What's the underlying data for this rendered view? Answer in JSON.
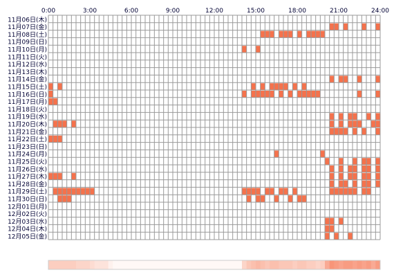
{
  "chart_data": {
    "type": "heatmap",
    "title": "",
    "x_ticks": [
      "0:00",
      "3:00",
      "6:00",
      "9:00",
      "12:00",
      "15:00",
      "18:00",
      "21:00",
      "24:00"
    ],
    "x_range_hours": [
      0,
      24
    ],
    "grid": true,
    "cell_minutes": 20,
    "active_color": "#f5724c",
    "grid_color": "#999999",
    "rows": [
      {
        "date": "11月06日(木)",
        "active": []
      },
      {
        "date": "11月07日(金)",
        "active": [
          [
            20.33,
            21.0
          ],
          [
            21.33,
            21.67
          ],
          [
            22.67,
            23.0
          ],
          [
            23.67,
            24.0
          ]
        ]
      },
      {
        "date": "11月08日(土)",
        "active": [
          [
            15.33,
            16.33
          ],
          [
            16.67,
            17.67
          ],
          [
            18.0,
            18.33
          ],
          [
            18.67,
            20.0
          ]
        ]
      },
      {
        "date": "11月09日(日)",
        "active": []
      },
      {
        "date": "11月10日(月)",
        "active": [
          [
            14.0,
            14.33
          ],
          [
            15.0,
            15.33
          ]
        ]
      },
      {
        "date": "11月11日(火)",
        "active": []
      },
      {
        "date": "11月12日(水)",
        "active": []
      },
      {
        "date": "11月13日(木)",
        "active": []
      },
      {
        "date": "11月14日(金)",
        "active": [
          [
            20.33,
            20.67
          ],
          [
            21.0,
            21.67
          ],
          [
            22.33,
            22.67
          ],
          [
            23.67,
            24.0
          ]
        ]
      },
      {
        "date": "11月15日(土)",
        "active": [
          [
            0.0,
            0.33
          ],
          [
            0.67,
            1.0
          ],
          [
            14.67,
            15.0
          ],
          [
            15.33,
            15.67
          ],
          [
            16.0,
            17.33
          ],
          [
            17.67,
            18.0
          ],
          [
            18.33,
            18.67
          ]
        ]
      },
      {
        "date": "11月16日(日)",
        "active": [
          [
            0.0,
            0.33
          ],
          [
            14.0,
            14.33
          ],
          [
            14.67,
            16.33
          ],
          [
            16.67,
            17.0
          ],
          [
            17.33,
            17.67
          ],
          [
            18.0,
            19.67
          ],
          [
            22.33,
            22.67
          ],
          [
            23.67,
            24.0
          ]
        ]
      },
      {
        "date": "11月17日(月)",
        "active": [
          [
            0.0,
            0.67
          ]
        ]
      },
      {
        "date": "11月18日(火)",
        "active": []
      },
      {
        "date": "11月19日(水)",
        "active": [
          [
            20.33,
            20.67
          ],
          [
            21.0,
            21.33
          ],
          [
            21.67,
            22.33
          ],
          [
            23.0,
            23.33
          ],
          [
            23.67,
            24.0
          ]
        ]
      },
      {
        "date": "11月20日(木)",
        "active": [
          [
            0.33,
            1.33
          ],
          [
            1.67,
            2.0
          ],
          [
            20.33,
            20.67
          ],
          [
            21.0,
            21.33
          ],
          [
            21.67,
            22.67
          ],
          [
            23.33,
            24.0
          ]
        ]
      },
      {
        "date": "11月21日(金)",
        "active": [
          [
            20.33,
            21.67
          ],
          [
            22.0,
            22.33
          ],
          [
            22.67,
            23.0
          ],
          [
            23.67,
            24.0
          ]
        ]
      },
      {
        "date": "11月22日(土)",
        "active": [
          [
            0.0,
            1.0
          ]
        ]
      },
      {
        "date": "11月23日(日)",
        "active": []
      },
      {
        "date": "11月24日(月)",
        "active": [
          [
            16.33,
            16.67
          ],
          [
            19.67,
            20.0
          ]
        ]
      },
      {
        "date": "11月25日(火)",
        "active": [
          [
            20.0,
            20.33
          ],
          [
            21.0,
            21.33
          ],
          [
            22.0,
            22.33
          ],
          [
            22.67,
            23.33
          ],
          [
            23.67,
            24.0
          ]
        ]
      },
      {
        "date": "11月26日(水)",
        "active": [
          [
            20.33,
            20.67
          ],
          [
            21.0,
            21.33
          ],
          [
            21.67,
            22.33
          ],
          [
            22.67,
            23.33
          ],
          [
            23.67,
            24.0
          ]
        ]
      },
      {
        "date": "11月27日(木)",
        "active": [
          [
            0.0,
            1.0
          ],
          [
            1.67,
            2.0
          ],
          [
            20.33,
            20.67
          ],
          [
            21.0,
            21.33
          ],
          [
            21.67,
            22.33
          ],
          [
            22.67,
            23.33
          ],
          [
            23.67,
            24.0
          ]
        ]
      },
      {
        "date": "11月28日(金)",
        "active": [
          [
            20.33,
            20.67
          ],
          [
            21.0,
            21.67
          ],
          [
            22.0,
            22.33
          ],
          [
            22.67,
            23.33
          ],
          [
            23.67,
            24.0
          ]
        ]
      },
      {
        "date": "11月29日(土)",
        "active": [
          [
            0.33,
            3.33
          ],
          [
            14.0,
            15.33
          ],
          [
            15.67,
            16.33
          ],
          [
            16.67,
            17.33
          ],
          [
            17.67,
            18.0
          ],
          [
            20.33,
            22.33
          ],
          [
            22.67,
            23.33
          ]
        ]
      },
      {
        "date": "11月30日(日)",
        "active": [
          [
            0.67,
            1.67
          ],
          [
            14.33,
            14.67
          ],
          [
            15.0,
            15.67
          ],
          [
            16.33,
            16.67
          ],
          [
            17.33,
            17.67
          ],
          [
            18.0,
            18.67
          ]
        ]
      },
      {
        "date": "12月01日(月)",
        "active": []
      },
      {
        "date": "12月02日(火)",
        "active": []
      },
      {
        "date": "12月03日(水)",
        "active": [
          [
            20.0,
            20.67
          ],
          [
            21.0,
            21.33
          ]
        ]
      },
      {
        "date": "12月04日(木)",
        "active": [
          [
            20.0,
            20.67
          ]
        ]
      },
      {
        "date": "12月05日(金)",
        "active": [
          [
            20.0,
            20.33
          ],
          [
            20.67,
            21.0
          ],
          [
            21.67,
            22.0
          ]
        ]
      }
    ],
    "summary_bar": {
      "base_color": "#ffffff",
      "max_color": "#f5724c",
      "levels": [
        0.35,
        0.35,
        0.35,
        0.35,
        0.35,
        0.35,
        0.3,
        0.3,
        0.3,
        0.25,
        0.2,
        0.2,
        0.2,
        0.1,
        0.05,
        0.05,
        0.05,
        0.05,
        0.05,
        0.05,
        0.05,
        0.05,
        0.05,
        0.05,
        0.05,
        0.05,
        0.05,
        0.05,
        0.05,
        0.05,
        0.05,
        0.05,
        0.05,
        0.05,
        0.05,
        0.05,
        0.05,
        0.05,
        0.05,
        0.05,
        0.05,
        0.05,
        0.3,
        0.4,
        0.45,
        0.5,
        0.45,
        0.4,
        0.45,
        0.45,
        0.4,
        0.4,
        0.4,
        0.35,
        0.4,
        0.4,
        0.35,
        0.35,
        0.3,
        0.35,
        0.6,
        0.75,
        0.7,
        0.65,
        0.7,
        0.7,
        0.65,
        0.7,
        0.65,
        0.7,
        0.6,
        0.7
      ]
    }
  }
}
